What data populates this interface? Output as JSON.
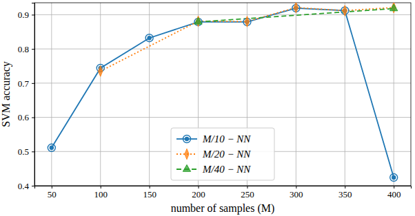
{
  "chart_data": {
    "type": "line",
    "x_label": "number of samples (M)",
    "y_label": "SVM accuracy",
    "xlim": [
      32.5,
      417.5
    ],
    "ylim": [
      0.4,
      0.935
    ],
    "xticks": [
      50,
      100,
      150,
      200,
      250,
      300,
      350,
      400
    ],
    "yticks": [
      0.4,
      0.5,
      0.6,
      0.7,
      0.8,
      0.9
    ],
    "grid": true,
    "legend": "lower center",
    "series": [
      {
        "name": "M/10 − NN",
        "color": "#1f77b4",
        "marker": "circle",
        "line_style": "solid",
        "x": [
          50,
          100,
          150,
          200,
          250,
          300,
          350,
          400
        ],
        "values": [
          0.511,
          0.744,
          0.832,
          0.879,
          0.879,
          0.919,
          0.912,
          0.424
        ]
      },
      {
        "name": "M/20 − NN",
        "color": "#ff7f0e",
        "marker": "diamond",
        "line_style": "dotted",
        "x": [
          100,
          200,
          250,
          300,
          350,
          400
        ],
        "values": [
          0.735,
          0.881,
          0.88,
          0.921,
          0.912,
          0.921
        ]
      },
      {
        "name": "M/40 − NN",
        "color": "#2ca02c",
        "marker": "triangle",
        "line_style": "dashed",
        "x": [
          200,
          400
        ],
        "values": [
          0.879,
          0.918
        ]
      }
    ]
  }
}
